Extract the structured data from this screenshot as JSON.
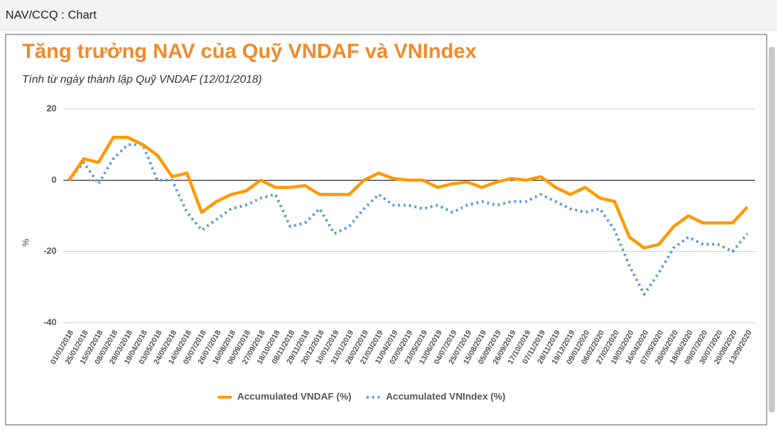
{
  "header": {
    "title": "NAV/CCQ : Chart"
  },
  "chart_data": {
    "type": "line",
    "title": "Tăng trưởng NAV của Quỹ VNDAF và VNIndex",
    "subtitle": "Tính từ ngày thành lập Quỹ VNDAF (12/01/2018)",
    "y_label": "%",
    "categories": [
      "01/01/2018",
      "25/01/2018",
      "15/02/2018",
      "08/03/2018",
      "29/03/2018",
      "19/04/2018",
      "03/05/2018",
      "24/05/2018",
      "14/06/2018",
      "05/07/2018",
      "26/07/2018",
      "16/08/2018",
      "06/09/2018",
      "27/09/2018",
      "18/10/2018",
      "08/11/2018",
      "29/11/2018",
      "20/12/2018",
      "10/01/2019",
      "31/01/2019",
      "28/02/2019",
      "21/03/2019",
      "11/04/2019",
      "02/05/2019",
      "23/05/2019",
      "13/06/2019",
      "04/07/2019",
      "25/07/2019",
      "15/08/2019",
      "05/09/2019",
      "26/09/2019",
      "17/10/2019",
      "07/11/2019",
      "28/11/2019",
      "19/12/2019",
      "09/01/2020",
      "06/02/2020",
      "27/02/2020",
      "19/03/2020",
      "16/04/2020",
      "07/05/2020",
      "28/05/2020",
      "18/06/2020",
      "09/07/2020",
      "30/07/2020",
      "20/08/2020",
      "13/09/2020"
    ],
    "series": [
      {
        "name": "Accumulated VNDAF (%)",
        "color": "#ff9900",
        "line_style": "solid",
        "values": [
          0,
          6,
          5,
          12,
          12,
          10,
          7,
          1,
          2,
          -9,
          -6,
          -4,
          -3,
          0,
          -2,
          -2,
          -1.5,
          -4,
          -4,
          -4,
          0,
          2,
          0.5,
          0,
          0,
          -2,
          -1,
          -0.5,
          -2,
          -0.5,
          0.5,
          0,
          1,
          -2,
          -4,
          -2,
          -5,
          -6,
          -16,
          -19,
          -18,
          -13,
          -10,
          -12,
          -12,
          -12,
          -7.5
        ]
      },
      {
        "name": "Accumulated  VNIndex (%)",
        "color": "#5b9bd5",
        "line_style": "dotted",
        "values": [
          0,
          5,
          -1,
          6,
          10,
          10,
          0,
          0,
          -9,
          -14,
          -11,
          -8,
          -7,
          -5,
          -4,
          -13,
          -12,
          -8,
          -15,
          -13,
          -8,
          -4,
          -7,
          -7,
          -8,
          -7,
          -9,
          -7,
          -6,
          -7,
          -6,
          -6,
          -4,
          -6,
          -8,
          -9,
          -8,
          -14,
          -24,
          -32,
          -26,
          -19,
          -16,
          -18,
          -18,
          -20,
          -15
        ]
      }
    ],
    "ylim": [
      -40,
      20
    ],
    "yticks": [
      -40,
      -20,
      0,
      20
    ],
    "grid": true,
    "legend": "bottom"
  }
}
